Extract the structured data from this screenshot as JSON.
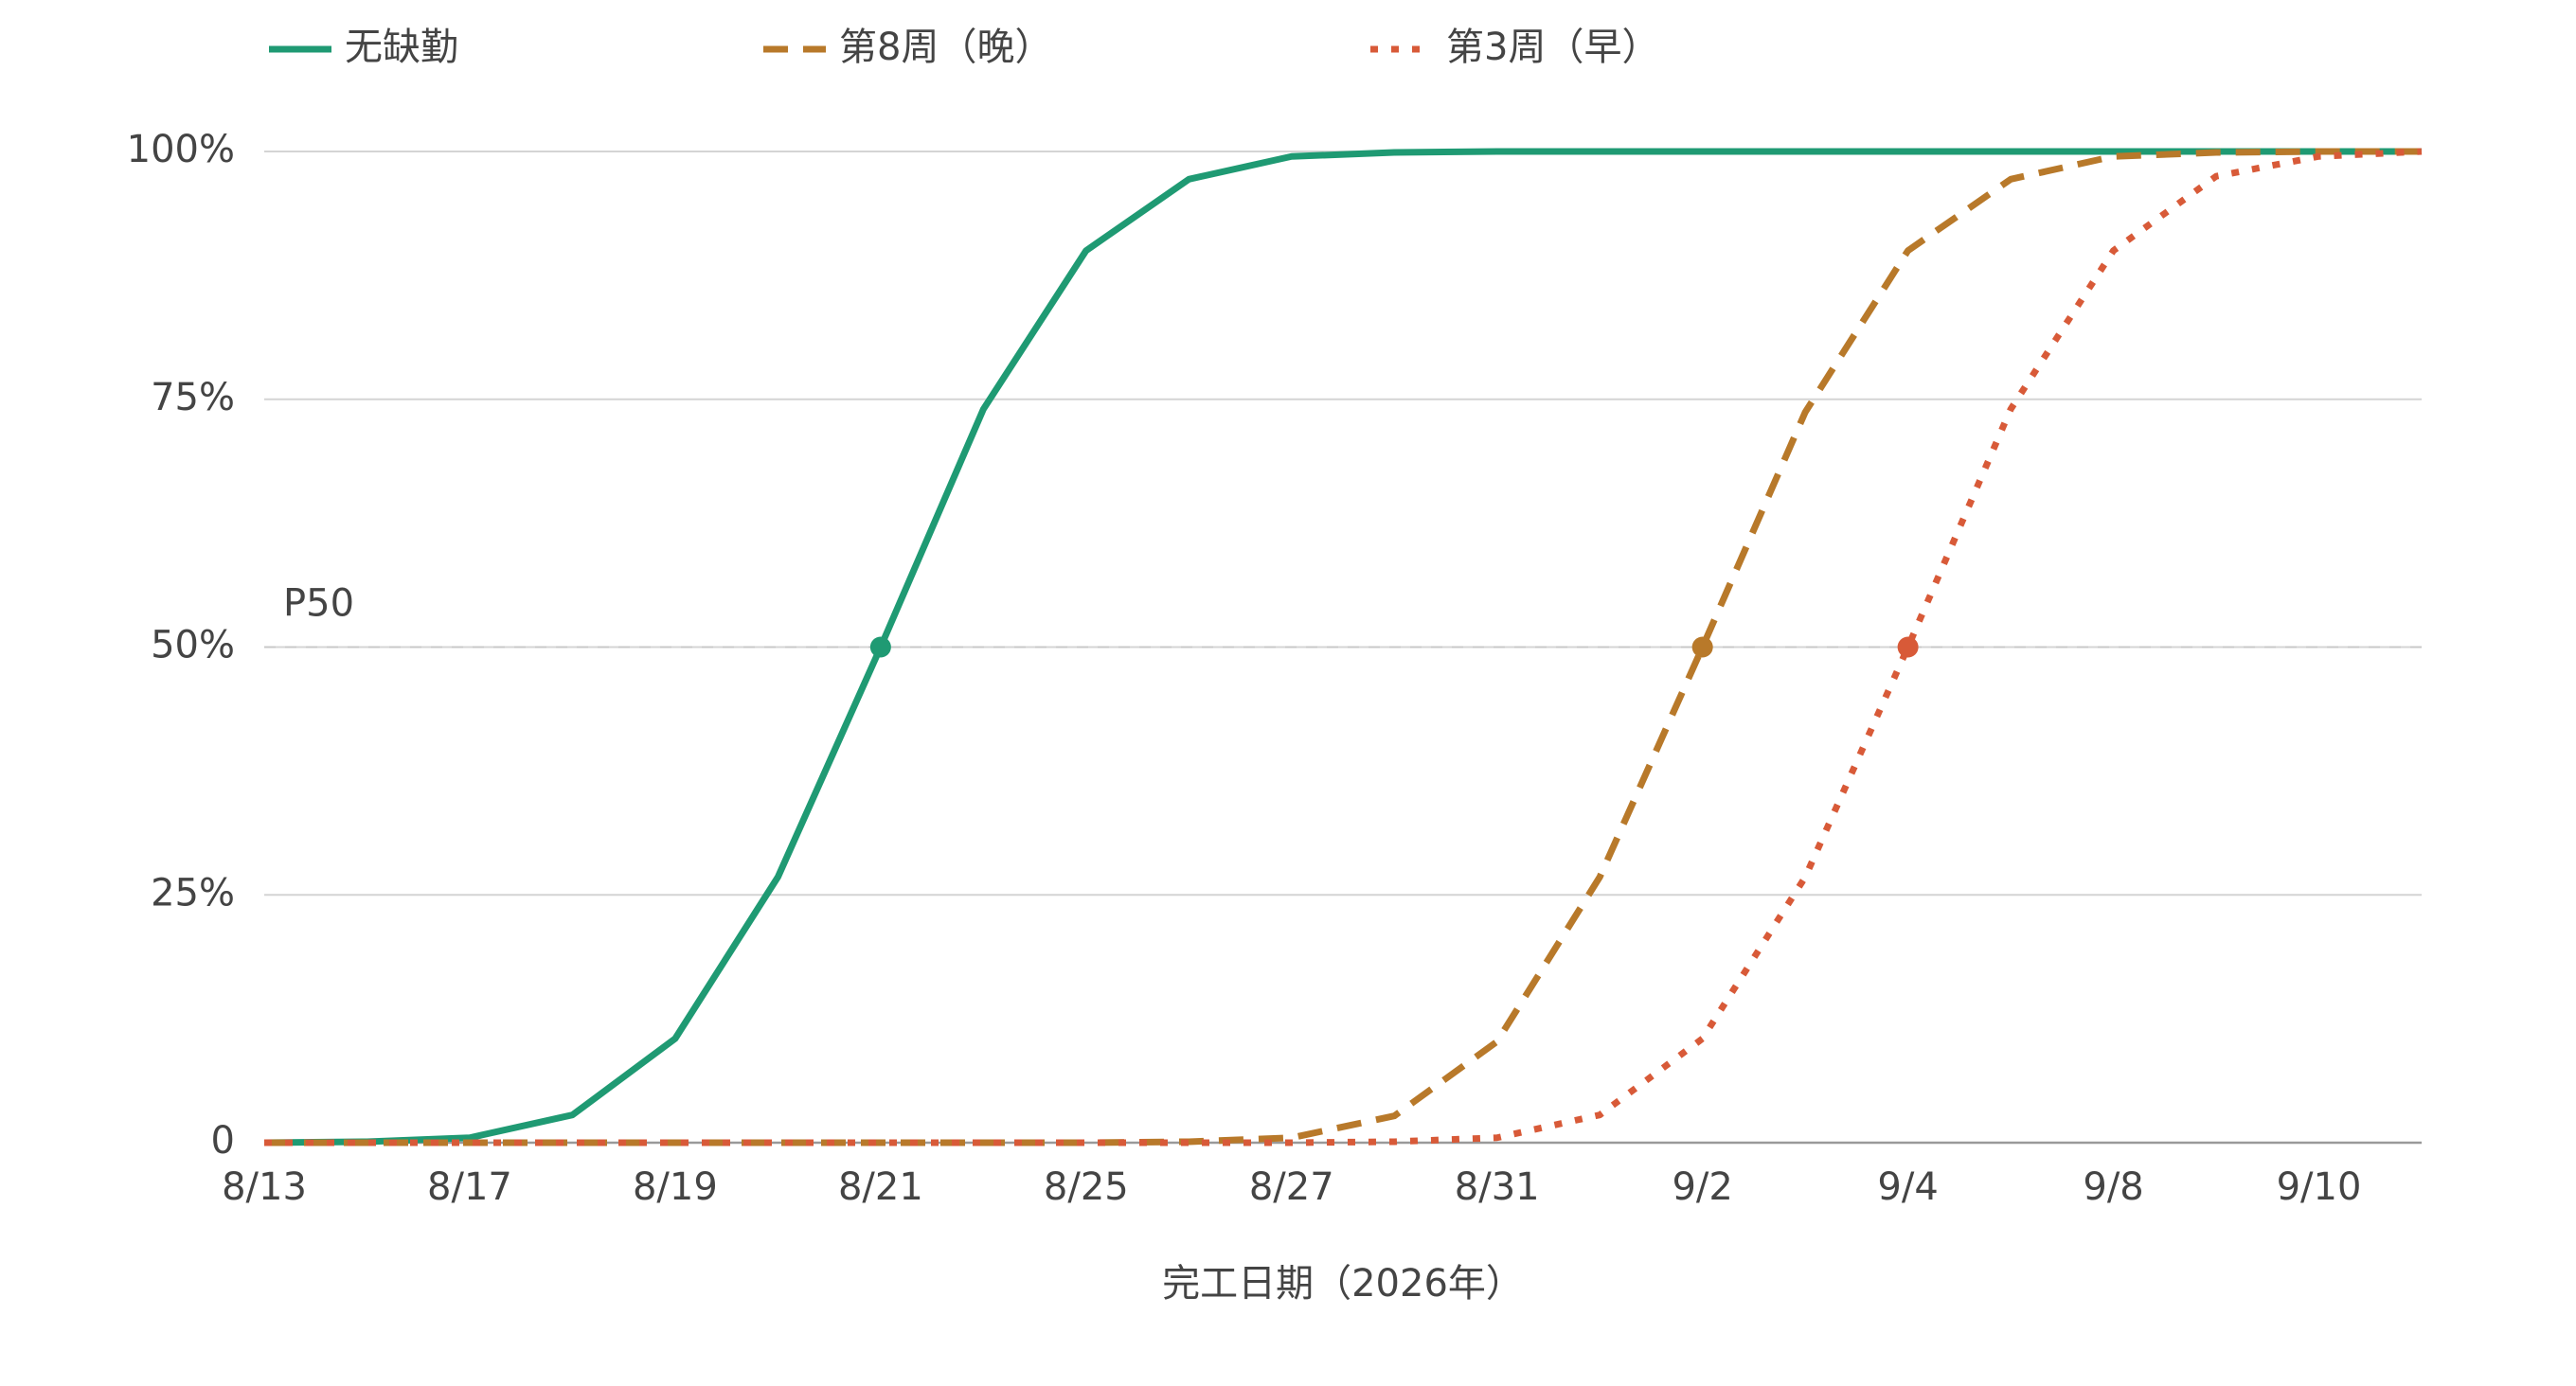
{
  "chart_data": {
    "type": "line",
    "x_label": "完工日期（2026年）",
    "categories": [
      "8/13",
      null,
      "8/17",
      null,
      "8/19",
      null,
      "8/21",
      null,
      "8/25",
      null,
      "8/27",
      null,
      "8/31",
      null,
      "9/2",
      null,
      "9/4",
      null,
      "9/8",
      null,
      "9/10",
      null
    ],
    "series": [
      {
        "name": "无缺勤",
        "color": "#1f9a73",
        "dash": "solid",
        "values": [
          0,
          0.1,
          0.5,
          2.8,
          10.5,
          26.8,
          50,
          74,
          90,
          97.2,
          99.5,
          99.9,
          100,
          100,
          100,
          100,
          100,
          100,
          100,
          100,
          100,
          100
        ]
      },
      {
        "name": "第8周（晚）",
        "color": "#b8792a",
        "dash": "dashed",
        "values": [
          0,
          0,
          0,
          0,
          0,
          0,
          0,
          0,
          0,
          0.1,
          0.5,
          2.7,
          10.2,
          26.8,
          50,
          73.7,
          90,
          97.2,
          99.5,
          99.9,
          100,
          100
        ]
      },
      {
        "name": "第3周（早）",
        "color": "#d85a38",
        "dash": "dotted",
        "values": [
          0,
          0,
          0,
          0,
          0,
          0,
          0,
          0,
          0,
          0,
          0,
          0.1,
          0.5,
          2.8,
          10.5,
          26.8,
          50,
          74,
          90,
          97.5,
          99.5,
          100
        ]
      }
    ],
    "reference_line": {
      "value": 50,
      "label": "P50"
    },
    "ylim": [
      0,
      100
    ],
    "yticks": [
      0,
      {
        "value": 25,
        "label": "25%"
      },
      {
        "value": 50,
        "label": "50%"
      },
      {
        "value": 75,
        "label": "75%"
      },
      {
        "value": 100,
        "label": "100%"
      }
    ],
    "grid": true,
    "legend": "top"
  }
}
